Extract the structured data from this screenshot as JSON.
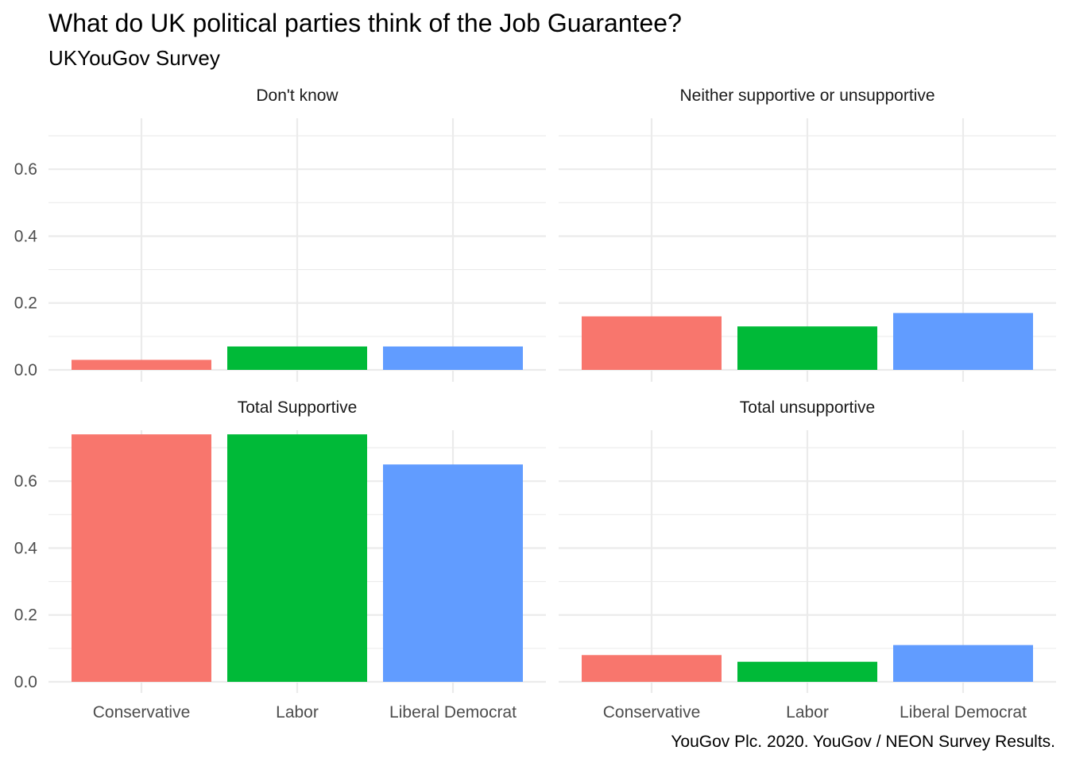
{
  "chart_data": {
    "type": "bar",
    "title": "What do UK political parties think of the Job Guarantee?",
    "subtitle": "UKYouGov Survey",
    "caption": "YouGov Plc. 2020. YouGov / NEON Survey Results.",
    "categories": [
      "Conservative",
      "Labor",
      "Liberal Democrat"
    ],
    "colors": [
      "#F8766D",
      "#00BA38",
      "#619CFF"
    ],
    "ylim": [
      0,
      0.75
    ],
    "yticks": [
      0.0,
      0.2,
      0.4,
      0.6
    ],
    "ytick_labels": [
      "0.0",
      "0.2",
      "0.4",
      "0.6"
    ],
    "grid": true,
    "legend": "none",
    "panels": [
      {
        "name": "Don't know",
        "values": [
          0.03,
          0.07,
          0.07
        ]
      },
      {
        "name": "Neither supportive or unsupportive",
        "values": [
          0.16,
          0.13,
          0.17
        ]
      },
      {
        "name": "Total Supportive",
        "values": [
          0.74,
          0.74,
          0.65
        ]
      },
      {
        "name": "Total unsupportive",
        "values": [
          0.08,
          0.06,
          0.11
        ]
      }
    ]
  }
}
